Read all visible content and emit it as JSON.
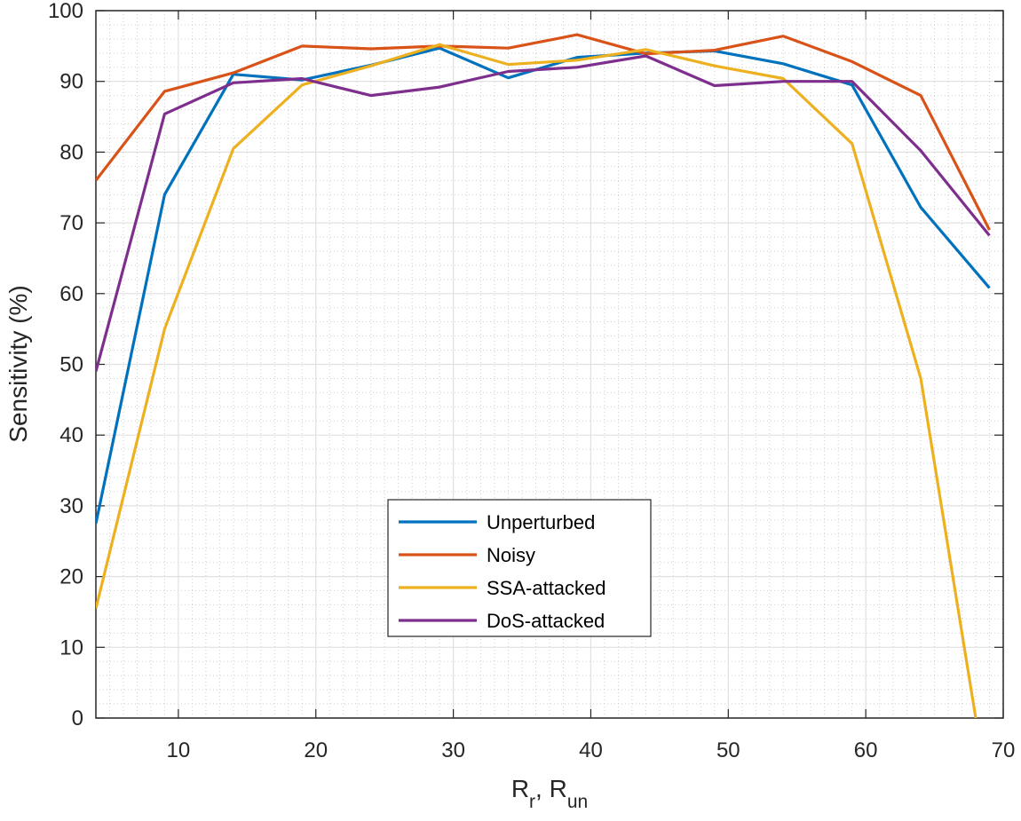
{
  "chart_data": {
    "type": "line",
    "title": "",
    "xlabel": {
      "main": "R",
      "sub1": "r",
      "sep": ", R",
      "sub2": "un"
    },
    "ylabel": "Sensitivity (%)",
    "xlim": [
      4,
      70
    ],
    "ylim": [
      0,
      100
    ],
    "xticks": [
      10,
      20,
      30,
      40,
      50,
      60,
      70
    ],
    "yticks": [
      0,
      10,
      20,
      30,
      40,
      50,
      60,
      70,
      80,
      90,
      100
    ],
    "grid": true,
    "minor_grid": true,
    "legend_position": "lower-center",
    "x": [
      4,
      9,
      14,
      19,
      24,
      29,
      34,
      39,
      44,
      49,
      54,
      59,
      64,
      69
    ],
    "series": [
      {
        "name": "Unperturbed",
        "color": "#0072BD",
        "values": [
          27.5,
          74,
          91,
          90.2,
          92.3,
          94.7,
          90.5,
          93.4,
          94,
          94.3,
          92.5,
          89.5,
          72.2,
          60.8
        ]
      },
      {
        "name": "Noisy",
        "color": "#D95319",
        "values": [
          76,
          88.6,
          91.2,
          95,
          94.6,
          95,
          94.7,
          96.6,
          93.9,
          94.4,
          96.4,
          92.8,
          88,
          69
        ]
      },
      {
        "name": "SSA-attacked",
        "color": "#EDB120",
        "x": [
          4,
          9,
          14,
          19,
          24,
          29,
          34,
          39,
          44,
          49,
          54,
          59,
          64,
          68
        ],
        "values": [
          15.5,
          55,
          80.5,
          89.5,
          92.2,
          95.2,
          92.4,
          93,
          94.5,
          92.2,
          90.4,
          81.2,
          48,
          0
        ]
      },
      {
        "name": "DoS-attacked",
        "color": "#7E2F8E",
        "values": [
          49,
          85.4,
          89.8,
          90.4,
          88,
          89.2,
          91.4,
          92,
          93.6,
          89.4,
          90,
          90,
          80.2,
          68.2
        ]
      }
    ]
  }
}
